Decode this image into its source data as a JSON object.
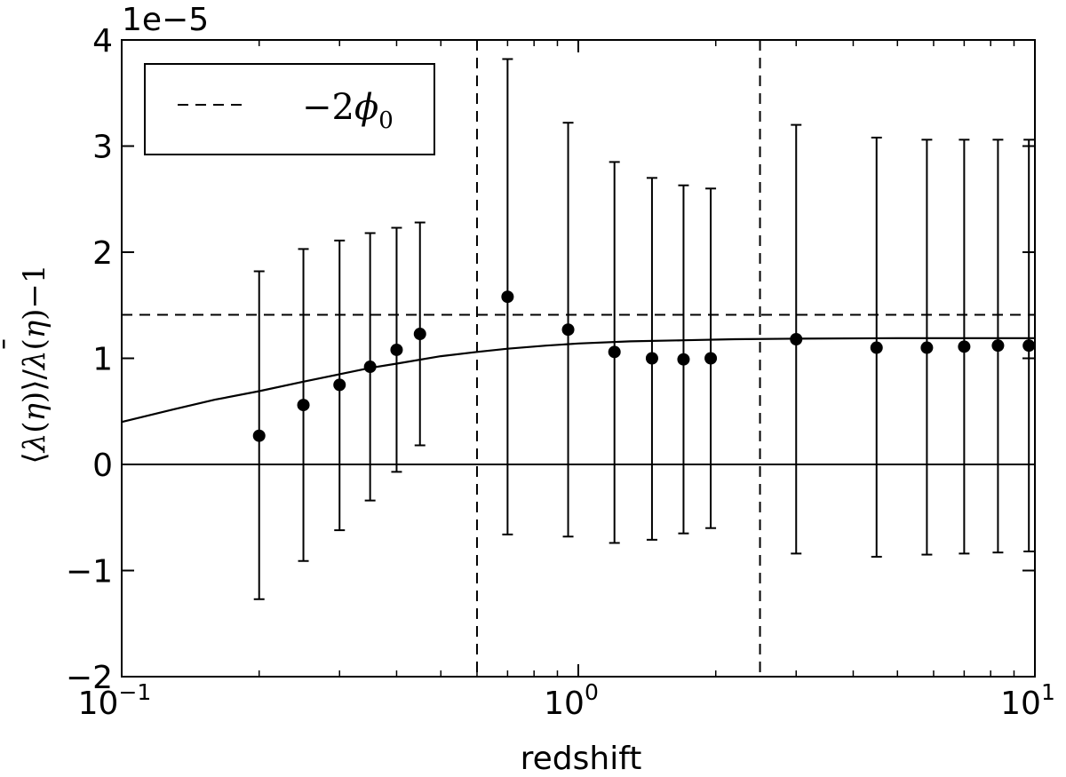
{
  "chart_data": {
    "type": "scatter",
    "xlabel": "redshift",
    "ylabel_parts": {
      "lang": "⟨",
      "lambda": "λ",
      "paren_open": "(",
      "eta": "η",
      "paren_close": ")",
      "rang": "⟩",
      "slash": "/",
      "bar": "¯",
      "minus_one": "−1"
    },
    "offset_label": "1e−5",
    "x_scale": "log",
    "xlim": [
      0.1,
      10
    ],
    "ylim": [
      -2,
      4
    ],
    "x_ticks": [
      {
        "value": 0.1,
        "base": "10",
        "exp": "−1"
      },
      {
        "value": 1,
        "base": "10",
        "exp": "0"
      },
      {
        "value": 10,
        "base": "10",
        "exp": "1"
      }
    ],
    "y_ticks": [
      {
        "value": -2,
        "label": "−2"
      },
      {
        "value": -1,
        "label": "−1"
      },
      {
        "value": 0,
        "label": "0"
      },
      {
        "value": 1,
        "label": "1"
      },
      {
        "value": 2,
        "label": "2"
      },
      {
        "value": 3,
        "label": "3"
      },
      {
        "value": 4,
        "label": "4"
      }
    ],
    "legend": {
      "placement": "top-left",
      "entry_minus": "−2",
      "entry_phi": "ϕ",
      "entry_sub": "0",
      "line_style": "dashed"
    },
    "hline_dashed": 1.41,
    "hline_zero": 0,
    "vlines_dashed": [
      0.6,
      2.5
    ],
    "points": [
      {
        "x": 0.2,
        "y": 0.27,
        "lo": -1.27,
        "hi": 1.82
      },
      {
        "x": 0.25,
        "y": 0.56,
        "lo": -0.91,
        "hi": 2.03
      },
      {
        "x": 0.3,
        "y": 0.75,
        "lo": -0.62,
        "hi": 2.11
      },
      {
        "x": 0.35,
        "y": 0.92,
        "lo": -0.34,
        "hi": 2.18
      },
      {
        "x": 0.4,
        "y": 1.08,
        "lo": -0.07,
        "hi": 2.23
      },
      {
        "x": 0.45,
        "y": 1.23,
        "lo": 0.18,
        "hi": 2.28
      },
      {
        "x": 0.7,
        "y": 1.58,
        "lo": -0.66,
        "hi": 3.82
      },
      {
        "x": 0.95,
        "y": 1.27,
        "lo": -0.68,
        "hi": 3.22
      },
      {
        "x": 1.2,
        "y": 1.06,
        "lo": -0.74,
        "hi": 2.85
      },
      {
        "x": 1.45,
        "y": 1.0,
        "lo": -0.71,
        "hi": 2.7
      },
      {
        "x": 1.7,
        "y": 0.99,
        "lo": -0.65,
        "hi": 2.63
      },
      {
        "x": 1.95,
        "y": 1.0,
        "lo": -0.6,
        "hi": 2.6
      },
      {
        "x": 3.0,
        "y": 1.18,
        "lo": -0.84,
        "hi": 3.2
      },
      {
        "x": 4.5,
        "y": 1.1,
        "lo": -0.87,
        "hi": 3.08
      },
      {
        "x": 5.8,
        "y": 1.1,
        "lo": -0.85,
        "hi": 3.06
      },
      {
        "x": 7.0,
        "y": 1.11,
        "lo": -0.84,
        "hi": 3.06
      },
      {
        "x": 8.3,
        "y": 1.12,
        "lo": -0.83,
        "hi": 3.06
      },
      {
        "x": 9.7,
        "y": 1.12,
        "lo": -0.82,
        "hi": 3.06
      }
    ],
    "model_curve": [
      {
        "x": 0.1,
        "y": 0.4
      },
      {
        "x": 0.13,
        "y": 0.52
      },
      {
        "x": 0.16,
        "y": 0.61
      },
      {
        "x": 0.2,
        "y": 0.69
      },
      {
        "x": 0.25,
        "y": 0.78
      },
      {
        "x": 0.3,
        "y": 0.85
      },
      {
        "x": 0.35,
        "y": 0.91
      },
      {
        "x": 0.4,
        "y": 0.95
      },
      {
        "x": 0.5,
        "y": 1.02
      },
      {
        "x": 0.6,
        "y": 1.06
      },
      {
        "x": 0.7,
        "y": 1.09
      },
      {
        "x": 0.85,
        "y": 1.12
      },
      {
        "x": 1.0,
        "y": 1.14
      },
      {
        "x": 1.3,
        "y": 1.16
      },
      {
        "x": 1.7,
        "y": 1.17
      },
      {
        "x": 2.2,
        "y": 1.18
      },
      {
        "x": 3.0,
        "y": 1.185
      },
      {
        "x": 5.0,
        "y": 1.19
      },
      {
        "x": 10.0,
        "y": 1.19
      }
    ]
  }
}
